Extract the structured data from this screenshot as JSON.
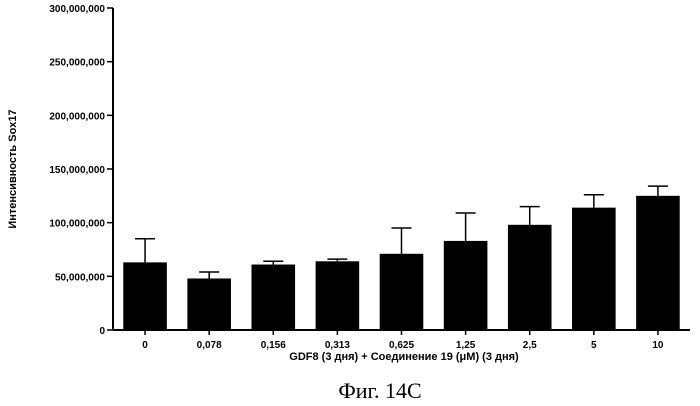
{
  "chart_data": {
    "type": "bar",
    "categories": [
      "0",
      "0,078",
      "0,156",
      "0,313",
      "0,625",
      "1,25",
      "2,5",
      "5",
      "10"
    ],
    "values": [
      63000000,
      48000000,
      61000000,
      64000000,
      71000000,
      83000000,
      98000000,
      114000000,
      125000000
    ],
    "error": [
      22000000,
      6000000,
      3000000,
      2000000,
      24000000,
      26000000,
      17000000,
      12000000,
      9000000
    ],
    "ylim": [
      0,
      300000000
    ],
    "yticks": [
      0,
      50000000,
      100000000,
      150000000,
      200000000,
      250000000,
      300000000
    ],
    "ytick_labels": [
      "0",
      "50,000,000",
      "100,000,000",
      "150,000,000",
      "200,000,000",
      "250,000,000",
      "300,000,000"
    ],
    "xlabel": "GDF8 (3 дня) + Соединение 19 (μM) (3 дня)",
    "ylabel": "Интенсивность Sox17",
    "grid": false,
    "bar_color": "#000000"
  },
  "caption": "Фиг. 14С"
}
